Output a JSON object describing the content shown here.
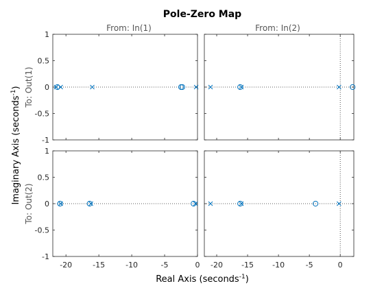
{
  "chart_data": {
    "type": "scatter",
    "title": "Pole-Zero Map",
    "xlabel": "Real Axis (seconds",
    "xlabel_sup": "-1",
    "xlabel_close": ")",
    "ylabel": "Imaginary Axis (seconds",
    "ylabel_sup": "-1",
    "ylabel_close": ")",
    "col_labels": [
      "From: In(1)",
      "From: In(2)"
    ],
    "row_labels": [
      "To: Out(1)",
      "To: Out(2)"
    ],
    "ylim": [
      -1,
      1
    ],
    "yticks": [
      1,
      0.5,
      0,
      -0.5,
      -1
    ],
    "ytick_labels": [
      "1",
      "0.5",
      "0",
      "-0.5",
      "-1"
    ],
    "columns": [
      {
        "xlim": [
          -22,
          0
        ],
        "xticks": [
          -20,
          -15,
          -10,
          -5,
          0
        ],
        "xtick_labels": [
          "-20",
          "-15",
          "-10",
          "-5",
          "0"
        ]
      },
      {
        "xlim": [
          -22,
          2.2
        ],
        "xticks": [
          -20,
          -15,
          -10,
          -5,
          0
        ],
        "xtick_labels": [
          "-20",
          "-15",
          "-10",
          "-5",
          "0"
        ]
      }
    ],
    "grid": false,
    "marker_color": "#0072BD",
    "subplots": [
      {
        "row": 0,
        "col": 0,
        "poles": [
          [
            -21.5,
            0
          ],
          [
            -20.8,
            0
          ],
          [
            -16.0,
            0
          ],
          [
            -0.2,
            0
          ]
        ],
        "zeros": [
          [
            -21.3,
            0
          ],
          [
            -2.5,
            0
          ],
          [
            -2.3,
            0
          ]
        ]
      },
      {
        "row": 0,
        "col": 1,
        "poles": [
          [
            -21.0,
            0
          ],
          [
            -16.0,
            0
          ],
          [
            -0.2,
            0
          ]
        ],
        "zeros": [
          [
            -16.2,
            0
          ],
          [
            2.0,
            0
          ]
        ]
      },
      {
        "row": 1,
        "col": 0,
        "poles": [
          [
            -20.8,
            0
          ],
          [
            -16.2,
            0
          ],
          [
            -0.3,
            0
          ]
        ],
        "zeros": [
          [
            -20.9,
            0
          ],
          [
            -16.4,
            0
          ],
          [
            -0.6,
            0
          ]
        ]
      },
      {
        "row": 1,
        "col": 1,
        "poles": [
          [
            -21.0,
            0
          ],
          [
            -16.0,
            0
          ],
          [
            -0.2,
            0
          ]
        ],
        "zeros": [
          [
            -16.2,
            0
          ],
          [
            -4.0,
            0
          ]
        ]
      }
    ]
  }
}
